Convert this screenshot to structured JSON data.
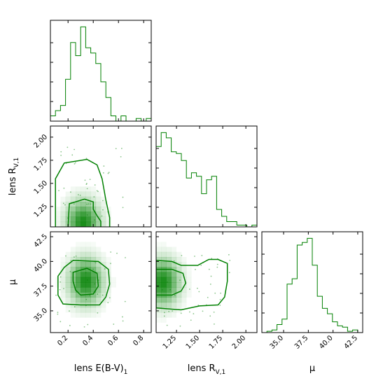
{
  "chart_data": {
    "type": "corner",
    "color": "#008000",
    "parameters": [
      {
        "key": "ebv",
        "label": "lens E(B-V)",
        "label_sub": "1",
        "range": [
          0.06,
          0.86
        ],
        "ticks": [
          0.2,
          0.4,
          0.6,
          0.8
        ],
        "tick_labels": [
          "0.2",
          "0.4",
          "0.6",
          "0.8"
        ]
      },
      {
        "key": "rv",
        "label": "lens R",
        "label_sub": "V,1",
        "range": [
          1.03,
          2.12
        ],
        "ticks": [
          1.25,
          1.5,
          1.75,
          2.0
        ],
        "tick_labels": [
          "1.25",
          "1.50",
          "1.75",
          "2.00"
        ]
      },
      {
        "key": "mu",
        "label": "μ",
        "label_sub": "",
        "range": [
          32.8,
          43.0
        ],
        "ticks": [
          35.0,
          37.5,
          40.0,
          42.5
        ],
        "tick_labels": [
          "35.0",
          "37.5",
          "40.0",
          "42.5"
        ]
      }
    ],
    "histograms": {
      "ebv": {
        "edges_range": [
          0.06,
          0.86
        ],
        "counts": [
          2,
          4,
          6,
          16,
          30,
          25,
          36,
          28,
          26,
          22,
          15,
          9,
          2,
          0,
          2,
          0,
          0,
          1,
          0,
          1
        ]
      },
      "rv": {
        "edges_range": [
          1.03,
          2.12
        ],
        "counts": [
          46,
          54,
          51,
          43,
          42,
          38,
          28,
          31,
          29,
          19,
          27,
          29,
          10,
          6,
          3,
          3,
          1,
          1,
          0,
          1
        ]
      },
      "mu": {
        "edges_range": [
          32.8,
          43.0
        ],
        "counts": [
          0,
          1,
          2,
          6,
          10,
          36,
          40,
          65,
          67,
          70,
          50,
          27,
          18,
          14,
          8,
          5,
          4,
          1,
          2,
          0
        ]
      }
    },
    "pairs": [
      {
        "x": "ebv",
        "y": "rv",
        "peak": [
          0.32,
          1.07
        ],
        "contour_outer": [
          [
            0.1,
            1.03
          ],
          [
            0.1,
            1.55
          ],
          [
            0.17,
            1.72
          ],
          [
            0.35,
            1.76
          ],
          [
            0.43,
            1.7
          ],
          [
            0.47,
            1.55
          ],
          [
            0.5,
            1.32
          ],
          [
            0.53,
            1.13
          ],
          [
            0.53,
            1.03
          ]
        ],
        "contour_inner": [
          [
            0.2,
            1.03
          ],
          [
            0.21,
            1.28
          ],
          [
            0.33,
            1.33
          ],
          [
            0.4,
            1.3
          ],
          [
            0.4,
            1.22
          ],
          [
            0.43,
            1.15
          ],
          [
            0.46,
            1.09
          ],
          [
            0.46,
            1.03
          ]
        ]
      },
      {
        "x": "ebv",
        "y": "mu",
        "peak": [
          0.34,
          38.0
        ],
        "contour_outer": [
          [
            0.24,
            40.1
          ],
          [
            0.44,
            40.0
          ],
          [
            0.52,
            39.2
          ],
          [
            0.53,
            37.7
          ],
          [
            0.5,
            36.4
          ],
          [
            0.45,
            35.6
          ],
          [
            0.3,
            35.6
          ],
          [
            0.16,
            35.7
          ],
          [
            0.12,
            36.6
          ],
          [
            0.12,
            38.5
          ],
          [
            0.17,
            39.4
          ]
        ],
        "contour_inner": [
          [
            0.24,
            38.9
          ],
          [
            0.35,
            39.3
          ],
          [
            0.43,
            38.8
          ],
          [
            0.44,
            37.5
          ],
          [
            0.4,
            36.7
          ],
          [
            0.3,
            36.6
          ],
          [
            0.26,
            37.1
          ],
          [
            0.24,
            38.0
          ]
        ]
      },
      {
        "x": "rv",
        "y": "mu",
        "peak": [
          1.1,
          37.9
        ],
        "contour_outer": [
          [
            1.03,
            40.1
          ],
          [
            1.2,
            40.0
          ],
          [
            1.3,
            39.6
          ],
          [
            1.48,
            39.6
          ],
          [
            1.6,
            40.2
          ],
          [
            1.7,
            40.2
          ],
          [
            1.8,
            39.8
          ],
          [
            1.8,
            38.0
          ],
          [
            1.77,
            36.4
          ],
          [
            1.7,
            35.6
          ],
          [
            1.5,
            35.5
          ],
          [
            1.3,
            35.1
          ],
          [
            1.03,
            35.3
          ]
        ],
        "contour_inner": [
          [
            1.03,
            39.2
          ],
          [
            1.2,
            39.2
          ],
          [
            1.32,
            38.8
          ],
          [
            1.35,
            37.8
          ],
          [
            1.3,
            37.0
          ],
          [
            1.2,
            36.6
          ],
          [
            1.03,
            36.6
          ]
        ]
      }
    ]
  }
}
